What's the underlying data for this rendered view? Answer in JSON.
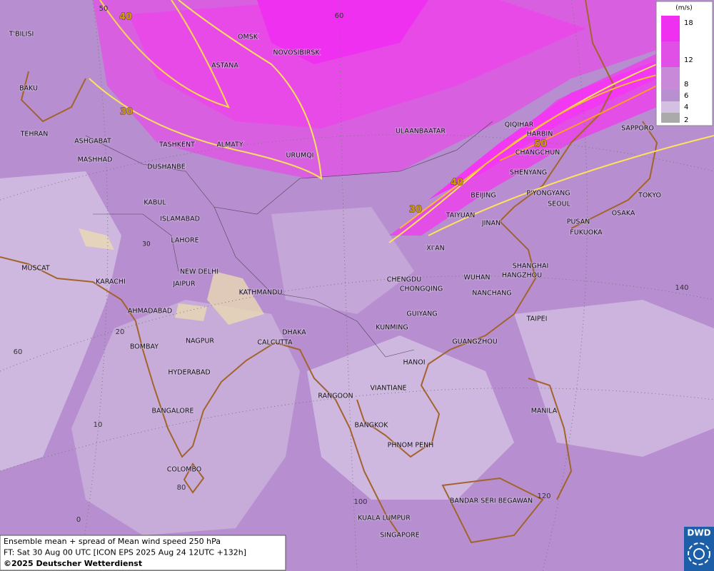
{
  "map": {
    "cities": [
      "T'BILISI",
      "BAKU",
      "TEHRAN",
      "ASHGABAT",
      "MASHHAD",
      "MUSCAT",
      "KARACHI",
      "AHMADABAD",
      "BOMBAY",
      "NAGPUR",
      "HYDERABAD",
      "BANGALORE",
      "COLOMBO",
      "OMSK",
      "NOVOSIBIRSK",
      "ASTANA",
      "TASHKENT",
      "ALMATY",
      "DUSHANBE",
      "URUMQI",
      "KABUL",
      "ISLAMABAD",
      "LAHORE",
      "NEW DELHI",
      "JAIPUR",
      "KATHMANDU",
      "DHAKA",
      "CALCUTTA",
      "RANGOON",
      "VIANTIANE",
      "HANOI",
      "BANGKOK",
      "PHNOM PENH",
      "KUALA LUMPUR",
      "SINGAPORE",
      "BANDAR SERI BEGAWAN",
      "MANILA",
      "ULAANBAATAR",
      "QIQIHAR",
      "HARBIN",
      "CHANGCHUN",
      "SHENYANG",
      "BEIJING",
      "P'YONGYANG",
      "SEOUL",
      "TAIYUAN",
      "JINAN",
      "PUSAN",
      "FUKUOKA",
      "OSAKA",
      "TOKYO",
      "SAPPORO",
      "XI'AN",
      "CHENGDU",
      "CHONGQING",
      "WUHAN",
      "SHANGHAI",
      "HANGZHOU",
      "NANCHANG",
      "TAIPEI",
      "GUIYANG",
      "KUNMING",
      "GUANGZHOU"
    ],
    "contour_labels": [
      "40",
      "30",
      "40",
      "30",
      "50",
      "30"
    ],
    "graticule_labels": [
      "50",
      "60",
      "140",
      "20",
      "60",
      "10",
      "80",
      "0",
      "100",
      "120"
    ]
  },
  "legend": {
    "unit": "(m/s)",
    "levels": [
      "18",
      "12",
      "8",
      "6",
      "4",
      "2"
    ]
  },
  "caption": [
    "Ensemble mean + spread of Mean wind speed 250 hPa",
    "FT: Sat 30 Aug 00 UTC [ICON EPS 2025 Aug 24 12UTC +132h]",
    "©2025 Deutscher Wetterdienst"
  ],
  "logo": "DWD"
}
